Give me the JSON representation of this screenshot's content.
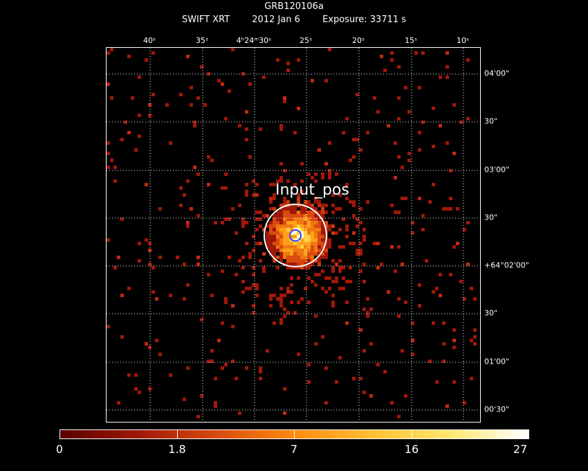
{
  "header": {
    "object": "GRB120106a",
    "instrument": "SWIFT XRT",
    "date": "2012 Jan  6",
    "exposure": "Exposure: 33711 s"
  },
  "axes": {
    "ra_labels": [
      "40ˢ",
      "35ˢ",
      "4ʰ24ᵐ30ˢ",
      "25ˢ",
      "20ˢ",
      "15ˢ",
      "10ˢ"
    ],
    "dec_labels": [
      "04'00\"",
      "30\"",
      "03'00\"",
      "30\"",
      "+64°02'00\"",
      "30\"",
      "01'00\"",
      "00'30\""
    ]
  },
  "source": {
    "label": "Input_pos"
  },
  "colorbar": {
    "labels": [
      "0",
      "1.8",
      "7",
      "16",
      "27"
    ],
    "gradient": [
      "#5a0000",
      "#a01808",
      "#d84a10",
      "#ff8a10",
      "#ffc030",
      "#ffe870",
      "#ffffff"
    ]
  },
  "colors": {
    "circle": "#ffffff",
    "inner_circle": "#3040ff",
    "grid": "#ffffff"
  }
}
